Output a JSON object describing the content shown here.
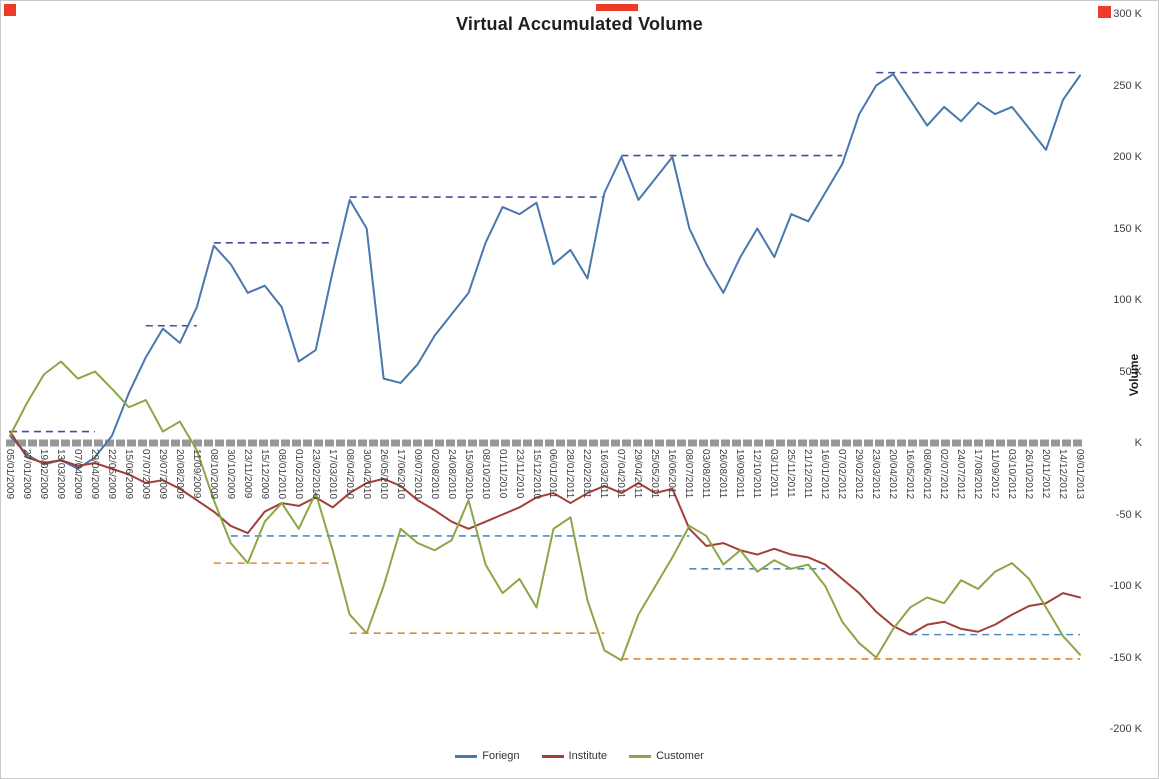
{
  "chart_data": {
    "type": "line",
    "title": "Virtual Accumulated Volume",
    "xlabel": "",
    "ylabel": "Volume",
    "unit": "K (thousands)",
    "ylim": [
      -200,
      300
    ],
    "grid": false,
    "legend_position": "bottom",
    "x_label_rotation": 90,
    "y_ticks": [
      "300 K",
      "250 K",
      "200 K",
      "150 K",
      "100 K",
      "50 K",
      "K",
      "-50 K",
      "-100 K",
      "-150 K",
      "-200 K"
    ],
    "y_tick_values": [
      300,
      250,
      200,
      150,
      100,
      50,
      0,
      -50,
      -100,
      -150,
      -200
    ],
    "zero_line": {
      "value": 0,
      "color": "#989898"
    },
    "categories": [
      "05/01/2009",
      "27/01/2009",
      "19/02/2009",
      "13/03/2009",
      "07/04/2009",
      "29/04/2009",
      "22/05/2009",
      "15/06/2009",
      "07/07/2009",
      "29/07/2009",
      "20/08/2009",
      "11/09/2009",
      "08/10/2009",
      "30/10/2009",
      "23/11/2009",
      "15/12/2009",
      "08/01/2010",
      "01/02/2010",
      "23/02/2010",
      "17/03/2010",
      "08/04/2010",
      "30/04/2010",
      "26/05/2010",
      "17/06/2010",
      "09/07/2010",
      "02/08/2010",
      "24/08/2010",
      "15/09/2010",
      "08/10/2010",
      "01/11/2010",
      "23/11/2010",
      "15/12/2010",
      "06/01/2011",
      "28/01/2011",
      "22/02/2011",
      "16/03/2011",
      "07/04/2011",
      "29/04/2011",
      "25/05/2011",
      "16/06/2011",
      "08/07/2011",
      "03/08/2011",
      "26/08/2011",
      "19/09/2011",
      "12/10/2011",
      "03/11/2011",
      "25/11/2011",
      "21/12/2011",
      "16/01/2012",
      "07/02/2012",
      "29/02/2012",
      "23/03/2012",
      "20/04/2012",
      "16/05/2012",
      "08/06/2012",
      "02/07/2012",
      "24/07/2012",
      "17/08/2012",
      "11/09/2012",
      "03/10/2012",
      "26/10/2012",
      "20/11/2012",
      "14/12/2012",
      "09/01/2013"
    ],
    "series": [
      {
        "name": "Foriegn",
        "color": "#4a77ad",
        "values": [
          5,
          -8,
          -15,
          -12,
          -18,
          -10,
          5,
          35,
          60,
          80,
          70,
          95,
          138,
          125,
          105,
          110,
          95,
          57,
          65,
          120,
          170,
          150,
          45,
          42,
          55,
          75,
          90,
          105,
          140,
          165,
          160,
          168,
          125,
          135,
          115,
          175,
          200,
          170,
          185,
          200,
          150,
          125,
          105,
          130,
          150,
          130,
          160,
          155,
          175,
          195,
          230,
          250,
          258,
          240,
          222,
          235,
          225,
          238,
          230,
          235,
          220,
          205,
          240,
          257
        ]
      },
      {
        "name": "Institute",
        "color": "#a33e38",
        "values": [
          8,
          -10,
          -14,
          -12,
          -16,
          -14,
          -18,
          -22,
          -28,
          -26,
          -32,
          -40,
          -48,
          -58,
          -63,
          -48,
          -42,
          -44,
          -38,
          -45,
          -35,
          -28,
          -25,
          -30,
          -40,
          -47,
          -55,
          -60,
          -55,
          -50,
          -45,
          -38,
          -35,
          -42,
          -35,
          -30,
          -35,
          -28,
          -35,
          -32,
          -60,
          -72,
          -70,
          -75,
          -78,
          -74,
          -78,
          -80,
          -85,
          -95,
          -105,
          -118,
          -128,
          -134,
          -127,
          -125,
          -130,
          -132,
          -127,
          -120,
          -114,
          -112,
          -105,
          -108
        ]
      },
      {
        "name": "Customer",
        "color": "#8ca647",
        "values": [
          5,
          28,
          48,
          57,
          45,
          50,
          38,
          25,
          30,
          8,
          15,
          -5,
          -40,
          -70,
          -84,
          -55,
          -42,
          -60,
          -35,
          -75,
          -120,
          -133,
          -100,
          -60,
          -70,
          -75,
          -68,
          -40,
          -85,
          -105,
          -95,
          -115,
          -60,
          -52,
          -110,
          -145,
          -152,
          -120,
          -100,
          -80,
          -58,
          -65,
          -85,
          -75,
          -90,
          -82,
          -88,
          -85,
          -100,
          -125,
          -140,
          -150,
          -130,
          -115,
          -108,
          -112,
          -96,
          -102,
          -90,
          -84,
          -95,
          -115,
          -135,
          -148
        ]
      }
    ],
    "reference_lines": [
      {
        "series": "Foriegn",
        "level": 8,
        "from": 0,
        "to": 5,
        "color": "#4a4a9c"
      },
      {
        "series": "Foriegn",
        "level": 82,
        "from": 8,
        "to": 11,
        "color": "#4a4a9c"
      },
      {
        "series": "Foriegn",
        "level": 140,
        "from": 12,
        "to": 19,
        "color": "#4a4a9c"
      },
      {
        "series": "Foriegn",
        "level": 172,
        "from": 20,
        "to": 35,
        "color": "#4a4a9c"
      },
      {
        "series": "Foriegn",
        "level": 201,
        "from": 36,
        "to": 49,
        "color": "#4a4a9c"
      },
      {
        "series": "Foriegn",
        "level": 259,
        "from": 51,
        "to": 63,
        "color": "#4a4a9c"
      },
      {
        "series": "Institute",
        "level": -65,
        "from": 13,
        "to": 40,
        "color": "#4f8cbf"
      },
      {
        "series": "Institute",
        "level": -88,
        "from": 40,
        "to": 48,
        "color": "#4f8cbf"
      },
      {
        "series": "Institute",
        "level": -134,
        "from": 53,
        "to": 63,
        "color": "#4f8cbf"
      },
      {
        "series": "Customer",
        "level": -84,
        "from": 12,
        "to": 19,
        "color": "#e6862c"
      },
      {
        "series": "Customer",
        "level": -133,
        "from": 20,
        "to": 35,
        "color": "#e6862c"
      },
      {
        "series": "Customer",
        "level": -151,
        "from": 36,
        "to": 63,
        "color": "#e6862c"
      }
    ]
  }
}
